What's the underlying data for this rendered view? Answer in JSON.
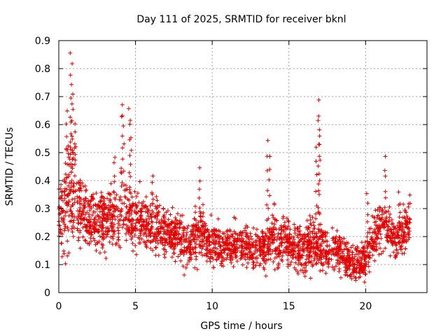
{
  "chart_data": {
    "type": "scatter",
    "title": "Day 111 of 2025, SRMTID for receiver bknl",
    "xlabel": "GPS time / hours",
    "ylabel": "SRMTID / TECUs",
    "xlim": [
      0,
      24
    ],
    "ylim": [
      0,
      0.9
    ],
    "xticks": [
      0,
      5,
      10,
      15,
      20
    ],
    "xtick_labels": [
      "0",
      "5",
      "10",
      "15",
      "20"
    ],
    "yticks": [
      0,
      0.1,
      0.2,
      0.3,
      0.4,
      0.5,
      0.6,
      0.7,
      0.8,
      0.9
    ],
    "ytick_labels": [
      "0",
      "0.1",
      "0.2",
      "0.3",
      "0.4",
      "0.5",
      "0.6",
      "0.7",
      "0.8",
      "0.9"
    ],
    "grid": true,
    "marker": "plus",
    "color": "#e00000",
    "series_envelope": {
      "name": "SRMTID",
      "x": [
        0,
        0.5,
        1,
        1.5,
        2,
        2.5,
        3,
        3.5,
        4,
        4.5,
        5,
        5.5,
        6,
        6.5,
        7,
        7.5,
        8,
        8.5,
        9,
        9.5,
        10,
        10.5,
        11,
        11.5,
        12,
        12.5,
        13,
        13.5,
        14,
        14.5,
        15,
        15.5,
        16,
        16.5,
        17,
        17.5,
        18,
        18.5,
        19,
        19.5,
        20,
        20.5,
        21,
        21.5,
        22,
        22.5,
        22.9
      ],
      "typical": [
        0.27,
        0.33,
        0.36,
        0.3,
        0.25,
        0.26,
        0.25,
        0.27,
        0.29,
        0.28,
        0.26,
        0.25,
        0.24,
        0.23,
        0.22,
        0.2,
        0.19,
        0.17,
        0.22,
        0.2,
        0.18,
        0.16,
        0.17,
        0.17,
        0.17,
        0.16,
        0.16,
        0.15,
        0.2,
        0.18,
        0.17,
        0.17,
        0.16,
        0.18,
        0.17,
        0.15,
        0.15,
        0.13,
        0.11,
        0.1,
        0.12,
        0.2,
        0.24,
        0.23,
        0.18,
        0.22,
        0.26
      ],
      "spread": [
        0.08,
        0.14,
        0.12,
        0.09,
        0.07,
        0.07,
        0.07,
        0.08,
        0.09,
        0.08,
        0.07,
        0.07,
        0.07,
        0.07,
        0.06,
        0.06,
        0.06,
        0.06,
        0.07,
        0.06,
        0.06,
        0.05,
        0.05,
        0.05,
        0.05,
        0.05,
        0.05,
        0.05,
        0.07,
        0.06,
        0.06,
        0.06,
        0.06,
        0.07,
        0.06,
        0.05,
        0.05,
        0.05,
        0.05,
        0.04,
        0.05,
        0.06,
        0.06,
        0.06,
        0.05,
        0.06,
        0.06
      ],
      "spikes": [
        [
          0.8,
          0.86
        ],
        [
          0.85,
          0.82
        ],
        [
          0.9,
          0.72
        ],
        [
          0.5,
          0.66
        ],
        [
          1.1,
          0.62
        ],
        [
          3.6,
          0.5
        ],
        [
          4.1,
          0.69
        ],
        [
          4.2,
          0.65
        ],
        [
          4.6,
          0.67
        ],
        [
          4.7,
          0.62
        ],
        [
          6.1,
          0.43
        ],
        [
          9.2,
          0.45
        ],
        [
          13.6,
          0.55
        ],
        [
          13.7,
          0.5
        ],
        [
          16.9,
          0.69
        ],
        [
          16.95,
          0.64
        ],
        [
          17.0,
          0.6
        ],
        [
          16.8,
          0.53
        ],
        [
          20.1,
          0.36
        ],
        [
          21.3,
          0.49
        ],
        [
          22.2,
          0.36
        ]
      ],
      "point_count": 2600
    }
  }
}
